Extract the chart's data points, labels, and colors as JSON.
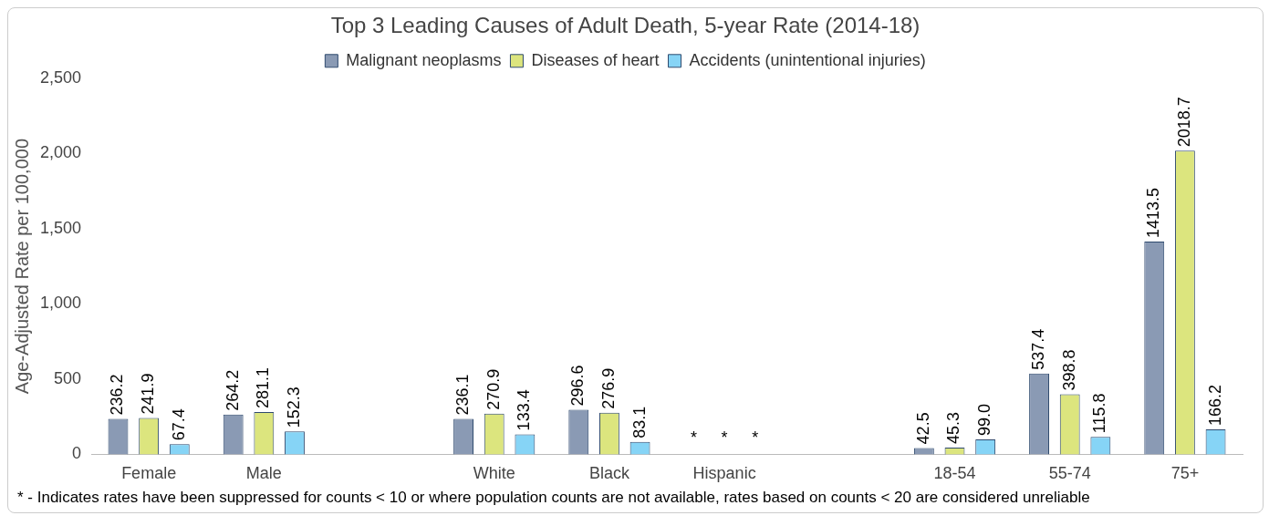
{
  "chart_data": {
    "type": "bar",
    "title": "Top 3 Leading Causes of Adult Death, 5-year Rate (2014-18)",
    "ylabel": "Age-Adjusted Rate per 100,000",
    "categories": [
      "Female",
      "Male",
      null,
      "White",
      "Black",
      "Hispanic",
      null,
      "18-54",
      "55-74",
      "75+"
    ],
    "series": [
      {
        "name": "Malignant neoplasms",
        "color": "#8a9ab4",
        "values": [
          236.2,
          264.2,
          null,
          236.1,
          296.6,
          null,
          null,
          42.5,
          537.4,
          1413.5
        ],
        "value_labels": [
          "236.2",
          "264.2",
          null,
          "236.1",
          "296.6",
          "*",
          null,
          "42.5",
          "537.4",
          "1413.5"
        ]
      },
      {
        "name": "Diseases of heart",
        "color": "#dce57e",
        "values": [
          241.9,
          281.1,
          null,
          270.9,
          276.9,
          null,
          null,
          45.3,
          398.8,
          2018.7
        ],
        "value_labels": [
          "241.9",
          "281.1",
          null,
          "270.9",
          "276.9",
          "*",
          null,
          "45.3",
          "398.8",
          "2018.7"
        ]
      },
      {
        "name": "Accidents (unintentional injuries)",
        "color": "#86d4f6",
        "values": [
          67.4,
          152.3,
          null,
          133.4,
          83.1,
          null,
          null,
          99.0,
          115.8,
          166.2
        ],
        "value_labels": [
          "67.4",
          "152.3",
          null,
          "133.4",
          "83.1",
          "*",
          null,
          "99.0",
          "115.8",
          "166.2"
        ]
      }
    ],
    "ylim": [
      0,
      2500
    ],
    "yticks": [
      0,
      {
        "value": 500,
        "label": "500"
      },
      {
        "value": 1000,
        "label": "1,000"
      },
      {
        "value": 1500,
        "label": "1,500"
      },
      {
        "value": 2000,
        "label": "2,000"
      },
      {
        "value": 2500,
        "label": "2,500"
      }
    ],
    "grid": false,
    "legend": "top",
    "annotations": [
      "* - Indicates rates have been suppressed for counts < 10 or where population counts are not available, rates based on counts < 20 are considered unreliable"
    ]
  }
}
